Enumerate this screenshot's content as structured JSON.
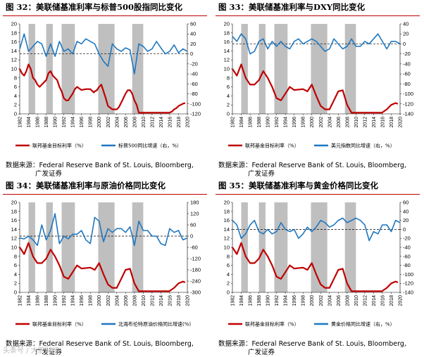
{
  "source": {
    "label": "数据来源：",
    "text": "Federal Reserve Bank of St. Louis, Bloomberg,",
    "line2": "广发证券"
  },
  "watermark": "头条号 / 大胆财经",
  "colors": {
    "red": "#c00000",
    "blue": "#1f77c0",
    "shade": "#bfbfbf",
    "accent_line": "#c00000"
  },
  "chart_data": [
    {
      "type": "line",
      "title": "图 32：美联储基准利率与标普500股指同比变化",
      "x_ticks": [
        "1982",
        "1984",
        "1986",
        "1988",
        "1990",
        "1992",
        "1994",
        "1996",
        "1998",
        "2000",
        "2002",
        "2004",
        "2006",
        "2008",
        "2010",
        "2012",
        "2014",
        "2016",
        "2018",
        "2020"
      ],
      "xlim": [
        1982,
        2020
      ],
      "left_axis": {
        "ticks": [
          0,
          2,
          4,
          6,
          8,
          10,
          12,
          14,
          16,
          18,
          20
        ],
        "ylim": [
          0,
          20
        ]
      },
      "right_axis": {
        "ticks": [
          -120,
          -100,
          -80,
          -60,
          -40,
          -20,
          0,
          20,
          40,
          60
        ],
        "ylim": [
          -120,
          60
        ]
      },
      "recessions": [
        [
          1984,
          1985.5
        ],
        [
          1988,
          1989.5
        ],
        [
          1991.5,
          1994.5
        ],
        [
          1999.8,
          2003.5
        ],
        [
          2007.5,
          2010
        ]
      ],
      "series": [
        {
          "name": "联邦基金目标利率（%）",
          "axis": "left",
          "color": "red",
          "x": [
            1982,
            1982.5,
            1983,
            1983.5,
            1984,
            1984.5,
            1985,
            1985.5,
            1986,
            1986.5,
            1987,
            1987.5,
            1988,
            1988.5,
            1989,
            1989.5,
            1990,
            1990.5,
            1991,
            1991.5,
            1992,
            1992.5,
            1993,
            1994,
            1994.5,
            1995,
            1996,
            1997,
            1998,
            1998.8,
            1999,
            1999.5,
            2000,
            2000.5,
            2001,
            2001.5,
            2002,
            2003,
            2004,
            2004.5,
            2005,
            2005.5,
            2006,
            2006.5,
            2007,
            2007.5,
            2008,
            2008.5,
            2009,
            2012,
            2015.9,
            2016.5,
            2017,
            2017.5,
            2018,
            2018.5,
            2019,
            2019.5
          ],
          "values": [
            10,
            9,
            8.5,
            9.5,
            11,
            10,
            8,
            7.5,
            6.5,
            6,
            6.5,
            7,
            7.5,
            9,
            9.5,
            8.5,
            8,
            7.5,
            6,
            5,
            3.5,
            3,
            3,
            4.5,
            5.5,
            6,
            5.3,
            5.5,
            5.5,
            4.75,
            5,
            5.25,
            6,
            6.5,
            5,
            3.5,
            1.75,
            1,
            1,
            1.5,
            2.5,
            3.5,
            4.5,
            5.25,
            5.25,
            4.5,
            3,
            2,
            0.25,
            0.25,
            0.25,
            0.5,
            1,
            1.25,
            1.75,
            2,
            2.25,
            2.4
          ]
        },
        {
          "name": "标普500同比增速（右，%）",
          "axis": "right",
          "color": "blue",
          "x": [
            1982,
            1983,
            1984,
            1985,
            1986,
            1987,
            1988,
            1989,
            1990,
            1991,
            1992,
            1993,
            1994,
            1995,
            1996,
            1997,
            1998,
            1999,
            2000,
            2001,
            2002,
            2003,
            2004,
            2005,
            2006,
            2007,
            2008,
            2009,
            2010,
            2011,
            2012,
            2013,
            2014,
            2015,
            2016,
            2017,
            2018,
            2019,
            2020
          ],
          "values": [
            10,
            40,
            5,
            15,
            25,
            20,
            -5,
            20,
            -5,
            25,
            5,
            10,
            0,
            25,
            20,
            30,
            25,
            20,
            0,
            -15,
            -25,
            20,
            10,
            5,
            12,
            8,
            -40,
            20,
            15,
            5,
            10,
            25,
            12,
            0,
            5,
            18,
            2,
            10,
            5
          ]
        }
      ]
    },
    {
      "type": "line",
      "title": "图 33：美联储基准利率与DXY同比变化",
      "x_ticks": [
        "1982",
        "1984",
        "1986",
        "1988",
        "1990",
        "1992",
        "1994",
        "1996",
        "1998",
        "2000",
        "2002",
        "2004",
        "2006",
        "2008",
        "2010",
        "2012",
        "2014",
        "2016",
        "2018",
        "2020"
      ],
      "xlim": [
        1982,
        2020
      ],
      "left_axis": {
        "ticks": [
          0,
          2,
          4,
          6,
          8,
          10,
          12,
          14,
          16,
          18,
          20
        ],
        "ylim": [
          0,
          20
        ]
      },
      "right_axis": {
        "ticks": [
          -140,
          -120,
          -100,
          -80,
          -60,
          -40,
          -20,
          0,
          20,
          40
        ],
        "ylim": [
          -140,
          40
        ]
      },
      "recessions": [
        [
          1984,
          1985.5
        ],
        [
          1988,
          1989.5
        ],
        [
          1991.5,
          1994.5
        ],
        [
          1999.8,
          2003.5
        ],
        [
          2007.5,
          2010
        ]
      ],
      "series": [
        {
          "name": "联邦基金目标利率（%）",
          "axis": "left",
          "color": "red",
          "x": [
            1982,
            1983,
            1984,
            1985,
            1986,
            1987,
            1988,
            1989,
            1990,
            1991,
            1992,
            1993,
            1994,
            1995,
            1996,
            1998,
            1999,
            2000,
            2001,
            2002,
            2003,
            2004,
            2005,
            2006,
            2007,
            2008,
            2009,
            2015.9,
            2017,
            2018,
            2019,
            2019.5
          ],
          "values": [
            10,
            8.5,
            11,
            8,
            6.5,
            6.5,
            7.5,
            9.5,
            8,
            6,
            3.5,
            3,
            4.5,
            6,
            5.3,
            5.5,
            5,
            6.5,
            4,
            1.75,
            1,
            1,
            3,
            5,
            5.25,
            2,
            0.25,
            0.25,
            1,
            2,
            2.4,
            2.2
          ]
        },
        {
          "name": "美元指数同比增速（右，%）",
          "axis": "right",
          "color": "blue",
          "x": [
            1982,
            1983,
            1984,
            1985,
            1986,
            1987,
            1988,
            1989,
            1990,
            1991,
            1992,
            1993,
            1994,
            1995,
            1996,
            1997,
            1998,
            1999,
            2000,
            2001,
            2002,
            2003,
            2004,
            2005,
            2006,
            2007,
            2008,
            2009,
            2010,
            2011,
            2012,
            2013,
            2014,
            2015,
            2016,
            2017,
            2018,
            2019,
            2020
          ],
          "values": [
            15,
            5,
            20,
            10,
            -20,
            -15,
            5,
            10,
            -10,
            5,
            -5,
            5,
            -5,
            -10,
            5,
            10,
            0,
            5,
            10,
            5,
            -5,
            -15,
            -10,
            10,
            0,
            -10,
            -5,
            10,
            -5,
            -5,
            5,
            0,
            10,
            20,
            5,
            -10,
            5,
            5,
            0
          ]
        }
      ]
    },
    {
      "type": "line",
      "title": "图 34：美联储基准利率与原油价格同比变化",
      "x_ticks": [
        "1982",
        "1984",
        "1986",
        "1988",
        "1990",
        "1992",
        "1994",
        "1996",
        "1998",
        "2000",
        "2002",
        "2004",
        "2006",
        "2008",
        "2010",
        "2012",
        "2014",
        "2016",
        "2018",
        "2020"
      ],
      "xlim": [
        1982,
        2020
      ],
      "left_axis": {
        "ticks": [
          0,
          2,
          4,
          6,
          8,
          10,
          12,
          14,
          16,
          18,
          20
        ],
        "ylim": [
          0,
          20
        ]
      },
      "right_axis": {
        "ticks": [
          -300,
          -240,
          -180,
          -120,
          -60,
          0,
          60,
          120,
          180
        ],
        "ylim": [
          -300,
          180
        ]
      },
      "recessions": [
        [
          1984,
          1985.5
        ],
        [
          1988,
          1989.5
        ],
        [
          1991.5,
          1994.5
        ],
        [
          1999.8,
          2003.5
        ],
        [
          2007.5,
          2010
        ]
      ],
      "series": [
        {
          "name": "联邦基金目标利率（%）",
          "axis": "left",
          "color": "red",
          "x": [
            1982,
            1983,
            1984,
            1985,
            1986,
            1987,
            1988,
            1989,
            1990,
            1991,
            1992,
            1993,
            1994,
            1995,
            1996,
            1998,
            1999,
            2000,
            2001,
            2002,
            2003,
            2004,
            2005,
            2006,
            2007,
            2008,
            2009,
            2015.9,
            2017,
            2018,
            2019,
            2019.5
          ],
          "values": [
            10,
            8.5,
            11,
            8,
            6.5,
            6.5,
            7.5,
            9.5,
            8,
            6,
            3.5,
            3,
            4.5,
            6,
            5.3,
            5.5,
            5,
            6.5,
            4,
            1.75,
            1,
            1,
            3,
            5,
            5.25,
            2,
            0.25,
            0.25,
            1,
            2,
            2.4,
            2.2
          ]
        },
        {
          "name": "北海布伦特原油价格同比增速(%)",
          "axis": "right",
          "color": "blue",
          "x": [
            1982,
            1983,
            1984,
            1985,
            1986,
            1987,
            1988,
            1989,
            1990,
            1991,
            1992,
            1993,
            1994,
            1995,
            1996,
            1997,
            1998,
            1999,
            2000,
            2001,
            2002,
            2003,
            2004,
            2005,
            2006,
            2007,
            2008,
            2009,
            2010,
            2011,
            2012,
            2013,
            2014,
            2015,
            2016,
            2017,
            2018,
            2019,
            2020
          ],
          "values": [
            -10,
            -15,
            0,
            -20,
            -50,
            60,
            -20,
            30,
            120,
            -40,
            0,
            -15,
            10,
            10,
            30,
            -20,
            -40,
            100,
            80,
            -30,
            40,
            20,
            40,
            40,
            20,
            50,
            -50,
            80,
            30,
            30,
            0,
            0,
            -40,
            -50,
            40,
            20,
            30,
            -20,
            -10
          ]
        }
      ]
    },
    {
      "type": "line",
      "title": "图 35：美联储基准利率与黄金价格同比变化",
      "x_ticks": [
        "1982",
        "1984",
        "1986",
        "1988",
        "1990",
        "1992",
        "1994",
        "1996",
        "1998",
        "2000",
        "2002",
        "2004",
        "2006",
        "2008",
        "2010",
        "2012",
        "2014",
        "2016",
        "2018",
        "2020"
      ],
      "xlim": [
        1982,
        2020
      ],
      "left_axis": {
        "ticks": [
          0,
          2,
          4,
          6,
          8,
          10,
          12,
          14,
          16,
          18,
          20
        ],
        "ylim": [
          0,
          20
        ]
      },
      "right_axis": {
        "ticks": [
          -140,
          -120,
          -100,
          -80,
          -60,
          -40,
          -20,
          0,
          20,
          40,
          60
        ],
        "ylim": [
          -140,
          60
        ]
      },
      "recessions": [
        [
          1984,
          1985.5
        ],
        [
          1988,
          1989.5
        ],
        [
          1991.5,
          1994.5
        ],
        [
          1999.8,
          2003.5
        ],
        [
          2007.5,
          2010
        ]
      ],
      "series": [
        {
          "name": "联邦基金目标利率（%）",
          "axis": "left",
          "color": "red",
          "x": [
            1982,
            1983,
            1984,
            1985,
            1986,
            1987,
            1988,
            1989,
            1990,
            1991,
            1992,
            1993,
            1994,
            1995,
            1996,
            1998,
            1999,
            2000,
            2001,
            2002,
            2003,
            2004,
            2005,
            2006,
            2007,
            2008,
            2009,
            2015.9,
            2017,
            2018,
            2019,
            2019.5
          ],
          "values": [
            10,
            8.5,
            11,
            8,
            6.5,
            6.5,
            7.5,
            9.5,
            8,
            6,
            3.5,
            3,
            4.5,
            6,
            5.3,
            5.5,
            5,
            6.5,
            4,
            1.75,
            1,
            1,
            3,
            5,
            5.25,
            2,
            0.25,
            0.25,
            1,
            2,
            2.4,
            2.2
          ]
        },
        {
          "name": "黄金价格同比增速（右，%）",
          "axis": "right",
          "color": "blue",
          "x": [
            1982,
            1983,
            1984,
            1985,
            1986,
            1987,
            1988,
            1989,
            1990,
            1991,
            1992,
            1993,
            1994,
            1995,
            1996,
            1997,
            1998,
            1999,
            2000,
            2001,
            2002,
            2003,
            2004,
            2005,
            2006,
            2007,
            2008,
            2009,
            2010,
            2011,
            2012,
            2013,
            2014,
            2015,
            2016,
            2017,
            2018,
            2019,
            2020
          ],
          "values": [
            20,
            10,
            -20,
            -10,
            10,
            20,
            -5,
            -10,
            0,
            -10,
            -5,
            15,
            0,
            -5,
            0,
            -20,
            -10,
            5,
            -5,
            5,
            20,
            15,
            5,
            10,
            20,
            25,
            15,
            20,
            25,
            20,
            10,
            -25,
            -5,
            -10,
            10,
            10,
            -5,
            20,
            15
          ]
        }
      ]
    }
  ]
}
